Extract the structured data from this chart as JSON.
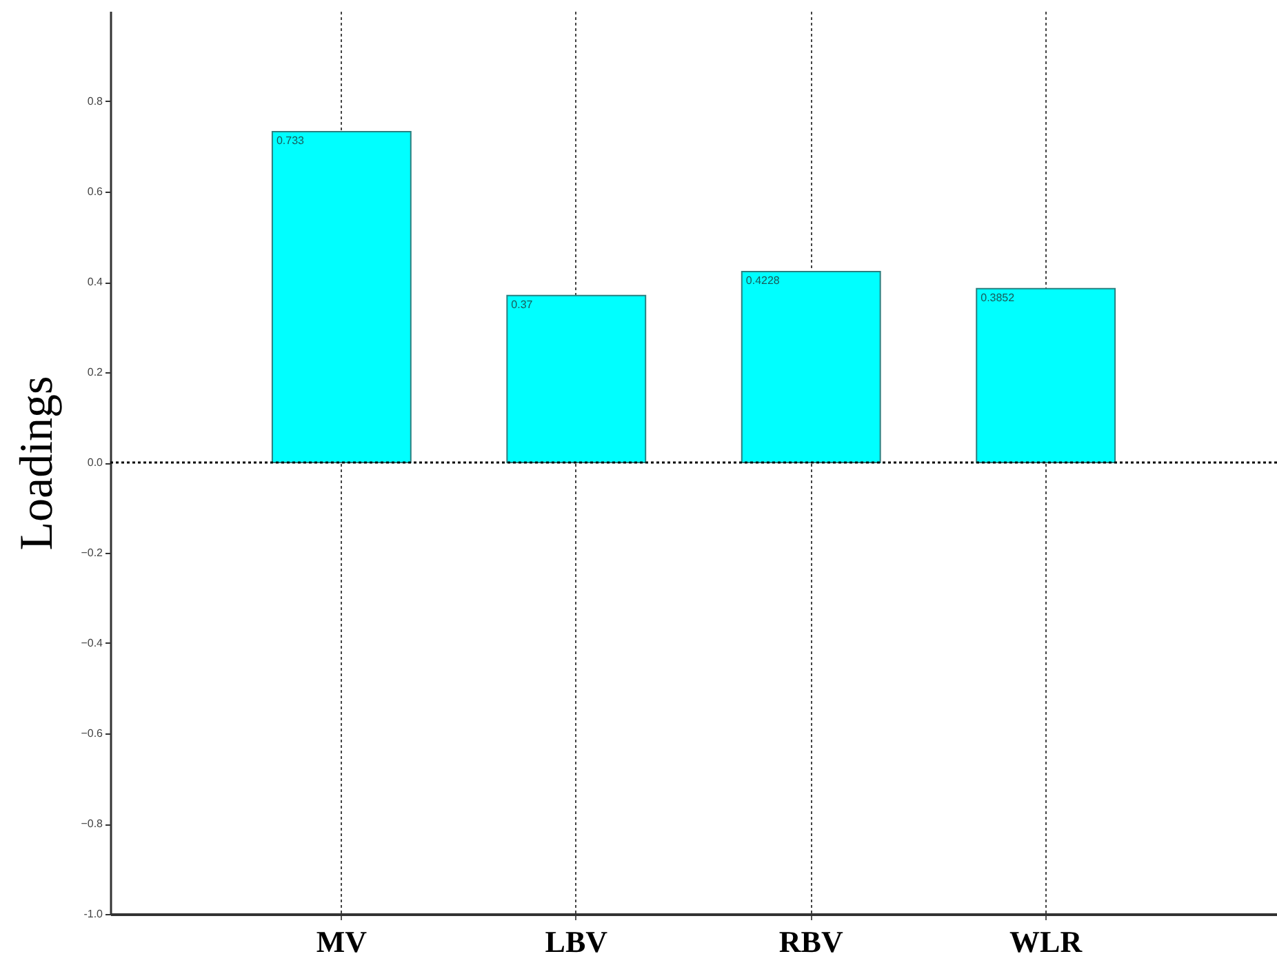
{
  "chart_data": {
    "type": "bar",
    "ylabel": "Loadings",
    "categories": [
      "MV",
      "LBV",
      "RBV",
      "WLR"
    ],
    "values": [
      0.733,
      0.37,
      0.4228,
      0.3852
    ],
    "color": "#00ffff",
    "data_labels": true,
    "ylim": [
      -1,
      1
    ],
    "yticks": [
      {
        "value": -1,
        "label": "-1.0"
      },
      -0.8,
      -0.6,
      -0.4,
      -0.2,
      {
        "value": 0,
        "label": "0.0"
      },
      0.2,
      0.4,
      0.6,
      0.8
    ],
    "grid": "x",
    "ref_lines": [
      {
        "axis": "y",
        "value": 0,
        "color": "#000000",
        "line_style": "dotted"
      }
    ]
  }
}
